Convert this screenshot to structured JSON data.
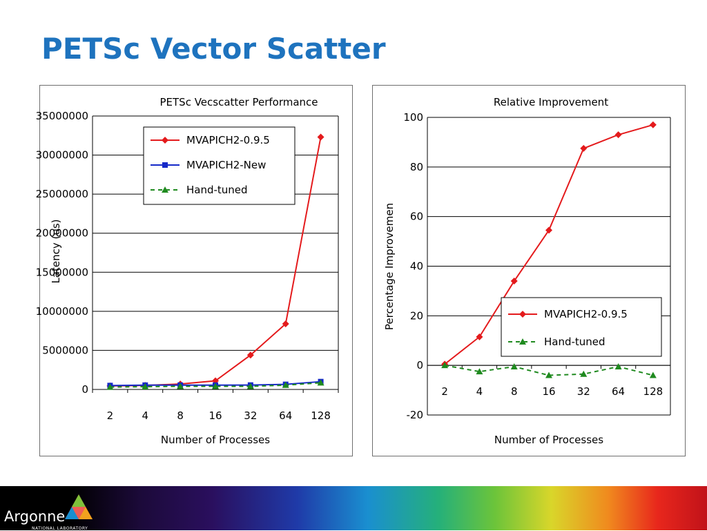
{
  "slide": {
    "title": "PETSc Vector Scatter",
    "logo": {
      "name": "Argonne",
      "subtitle": "NATIONAL LABORATORY"
    }
  },
  "chart_data": [
    {
      "type": "line",
      "title": "PETSc Vecscatter Performance",
      "xlabel": "Number of Processes",
      "ylabel": "Latency (us)",
      "categories": [
        "2",
        "4",
        "8",
        "16",
        "32",
        "64",
        "128"
      ],
      "ylim": [
        0,
        35000000
      ],
      "yticks": [
        0,
        5000000,
        10000000,
        15000000,
        20000000,
        25000000,
        30000000,
        35000000
      ],
      "grid": true,
      "legend_position": "top-left",
      "series": [
        {
          "name": "MVAPICH2-0.9.5",
          "color": "#e41a1c",
          "marker": "diamond",
          "dash": "solid",
          "values": [
            450000,
            520000,
            700000,
            1100000,
            4400000,
            8400000,
            32300000
          ]
        },
        {
          "name": "MVAPICH2-New",
          "color": "#1428c8",
          "marker": "square",
          "dash": "solid",
          "values": [
            500000,
            550000,
            550000,
            550000,
            560000,
            650000,
            1000000
          ]
        },
        {
          "name": "Hand-tuned",
          "color": "#1f8a1f",
          "marker": "triangle",
          "dash": "dashed",
          "values": [
            300000,
            350000,
            400000,
            400000,
            400000,
            550000,
            850000
          ]
        }
      ]
    },
    {
      "type": "line",
      "title": "Relative Improvement",
      "xlabel": "Number of Processes",
      "ylabel": "Percentage Improvemen",
      "categories": [
        "2",
        "4",
        "8",
        "16",
        "32",
        "64",
        "128"
      ],
      "ylim": [
        -20,
        100
      ],
      "yticks": [
        -20,
        0,
        20,
        40,
        60,
        80,
        100
      ],
      "grid": true,
      "legend_position": "bottom-right",
      "series": [
        {
          "name": "MVAPICH2-0.9.5",
          "color": "#e41a1c",
          "marker": "diamond",
          "dash": "solid",
          "values": [
            0.5,
            11.5,
            34,
            54.5,
            87.5,
            93,
            97
          ]
        },
        {
          "name": "Hand-tuned",
          "color": "#1f8a1f",
          "marker": "triangle",
          "dash": "dashed",
          "values": [
            0,
            -2.5,
            -0.5,
            -4,
            -3.5,
            -0.5,
            -4
          ]
        }
      ]
    }
  ]
}
